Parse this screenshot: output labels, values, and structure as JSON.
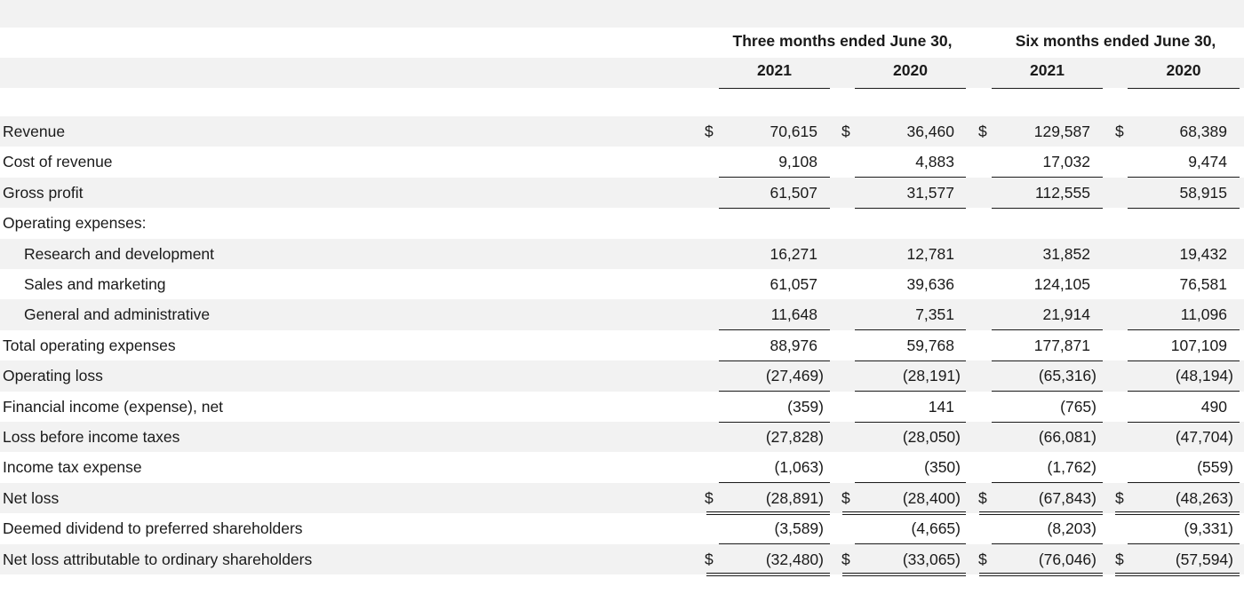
{
  "header": {
    "group1": "Three months ended June 30,",
    "group2": "Six months ended June 30,",
    "years": [
      "2021",
      "2020",
      "2021",
      "2020"
    ]
  },
  "currency_symbol": "$",
  "rows": [
    {
      "label": "Revenue",
      "values": [
        "70,615",
        "36,460",
        "129,587",
        "68,389"
      ],
      "dollar": true,
      "indent": false
    },
    {
      "label": "Cost of revenue",
      "values": [
        "9,108",
        "4,883",
        "17,032",
        "9,474"
      ],
      "dollar": false,
      "indent": false
    },
    {
      "label": "Gross profit",
      "values": [
        "61,507",
        "31,577",
        "112,555",
        "58,915"
      ],
      "dollar": false,
      "indent": false
    },
    {
      "label": "Operating expenses:",
      "values": [
        "",
        "",
        "",
        ""
      ],
      "dollar": false,
      "indent": false
    },
    {
      "label": "Research and development",
      "values": [
        "16,271",
        "12,781",
        "31,852",
        "19,432"
      ],
      "dollar": false,
      "indent": true
    },
    {
      "label": "Sales and marketing",
      "values": [
        "61,057",
        "39,636",
        "124,105",
        "76,581"
      ],
      "dollar": false,
      "indent": true
    },
    {
      "label": "General and administrative",
      "values": [
        "11,648",
        "7,351",
        "21,914",
        "11,096"
      ],
      "dollar": false,
      "indent": true
    },
    {
      "label": "Total operating expenses",
      "values": [
        "88,976",
        "59,768",
        "177,871",
        "107,109"
      ],
      "dollar": false,
      "indent": false
    },
    {
      "label": "Operating loss",
      "values": [
        "(27,469)",
        "(28,191)",
        "(65,316)",
        "(48,194)"
      ],
      "dollar": false,
      "indent": false
    },
    {
      "label": "Financial income (expense), net",
      "values": [
        "(359)",
        "141",
        "(765)",
        "490"
      ],
      "dollar": false,
      "indent": false
    },
    {
      "label": "Loss before income taxes",
      "values": [
        "(27,828)",
        "(28,050)",
        "(66,081)",
        "(47,704)"
      ],
      "dollar": false,
      "indent": false
    },
    {
      "label": "Income tax expense",
      "values": [
        "(1,063)",
        "(350)",
        "(1,762)",
        "(559)"
      ],
      "dollar": false,
      "indent": false
    },
    {
      "label": "Net loss",
      "values": [
        "(28,891)",
        "(28,400)",
        "(67,843)",
        "(48,263)"
      ],
      "dollar": true,
      "indent": false
    },
    {
      "label": "Deemed dividend to preferred shareholders",
      "values": [
        "(3,589)",
        "(4,665)",
        "(8,203)",
        "(9,331)"
      ],
      "dollar": false,
      "indent": false
    },
    {
      "label": "Net loss attributable to ordinary shareholders",
      "values": [
        "(32,480)",
        "(33,065)",
        "(76,046)",
        "(57,594)"
      ],
      "dollar": true,
      "indent": false
    }
  ]
}
